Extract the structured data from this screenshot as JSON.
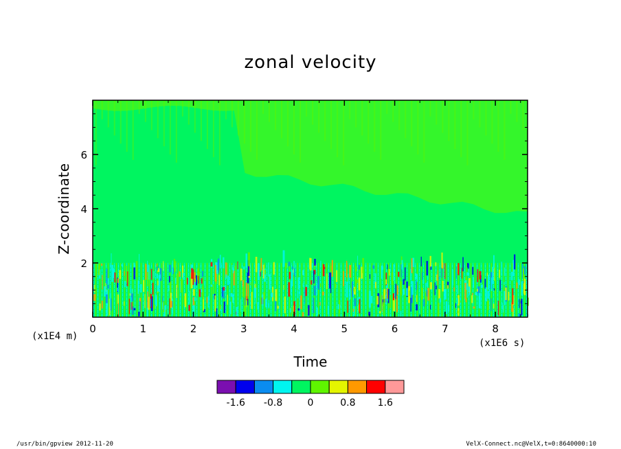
{
  "chart_data": {
    "type": "heatmap",
    "title": "zonal velocity",
    "xlabel": "Time",
    "ylabel": "Z-coordinate",
    "x_unit_label": "(x1E6 s)",
    "y_unit_label": "(x1E4 m)",
    "xlim": [
      0,
      8.64
    ],
    "ylim": [
      0,
      8
    ],
    "x_ticks": [
      "0",
      "1",
      "2",
      "3",
      "4",
      "5",
      "6",
      "7",
      "8"
    ],
    "y_ticks": [
      "2",
      "4",
      "6"
    ],
    "x_tick_values": [
      0,
      1,
      2,
      3,
      4,
      5,
      6,
      7,
      8
    ],
    "y_tick_values": [
      2,
      4,
      6
    ],
    "colorbar": {
      "levels": [
        -2.0,
        -1.6,
        -1.2,
        -0.8,
        -0.4,
        0,
        0.4,
        0.8,
        1.2,
        1.6,
        2.0
      ],
      "tick_labels": [
        "-1.6",
        "-0.8",
        "0",
        "0.8",
        "1.6"
      ],
      "tick_values": [
        -1.6,
        -0.8,
        0,
        0.8,
        1.6
      ],
      "colors": [
        "#7b0fb0",
        "#0000ee",
        "#0a8cf0",
        "#00f5f0",
        "#00f560",
        "#5ff500",
        "#e4f500",
        "#ff9900",
        "#ff0000",
        "#ff9999"
      ]
    },
    "field_bands": [
      {
        "y_range": [
          0,
          2.0
        ],
        "value_range": [
          -1.2,
          1.2
        ],
        "note": "strong variability near bottom"
      },
      {
        "y_range": [
          2.0,
          5.5
        ],
        "value": 0.0
      },
      {
        "y_range": [
          5.5,
          8.0
        ],
        "value_range": [
          0.0,
          0.4
        ]
      }
    ]
  },
  "footer": {
    "left": "/usr/bin/gpview   2012-11-20",
    "right": "VelX-Connect.nc@VelX,t=0:8640000:10"
  }
}
